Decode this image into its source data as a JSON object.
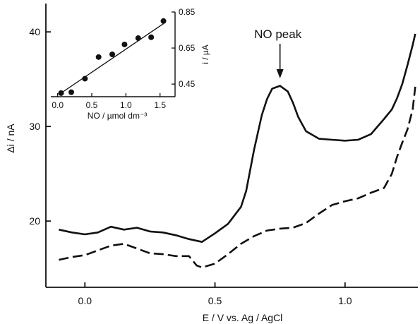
{
  "chart_data": [
    {
      "type": "line",
      "xlabel": "E / V vs. Ag / AgCl",
      "ylabel": "Δi / nA",
      "xlim": [
        -0.15,
        1.28
      ],
      "ylim": [
        13,
        43
      ],
      "x_ticks": [
        "0.0",
        "0.5",
        "1.0"
      ],
      "x_tick_values": [
        0.0,
        0.5,
        1.0
      ],
      "y_ticks": [
        "20",
        "30",
        "40"
      ],
      "y_tick_values": [
        20,
        30,
        40
      ],
      "grid": false,
      "annotation": "NO peak",
      "annotation_x": 0.75,
      "series": [
        {
          "style": "solid",
          "x": [
            -0.1,
            -0.05,
            0.0,
            0.05,
            0.1,
            0.15,
            0.2,
            0.25,
            0.3,
            0.35,
            0.4,
            0.45,
            0.5,
            0.55,
            0.6,
            0.62,
            0.65,
            0.68,
            0.7,
            0.72,
            0.75,
            0.78,
            0.8,
            0.82,
            0.85,
            0.9,
            0.95,
            1.0,
            1.05,
            1.1,
            1.15,
            1.18,
            1.2,
            1.22,
            1.24,
            1.26,
            1.27
          ],
          "y": [
            19.1,
            18.8,
            18.6,
            18.8,
            19.4,
            19.1,
            19.3,
            18.9,
            18.8,
            18.5,
            18.1,
            17.8,
            18.7,
            19.7,
            21.5,
            23.2,
            27.5,
            31.2,
            32.9,
            34.0,
            34.3,
            33.7,
            32.5,
            31.0,
            29.5,
            28.7,
            28.6,
            28.5,
            28.6,
            29.2,
            30.8,
            31.8,
            33.0,
            34.5,
            36.5,
            38.6,
            39.8
          ]
        },
        {
          "style": "dashed",
          "x": [
            -0.1,
            -0.05,
            0.0,
            0.05,
            0.1,
            0.15,
            0.2,
            0.25,
            0.3,
            0.35,
            0.4,
            0.43,
            0.45,
            0.5,
            0.55,
            0.6,
            0.65,
            0.7,
            0.75,
            0.8,
            0.85,
            0.9,
            0.95,
            1.0,
            1.05,
            1.1,
            1.15,
            1.18,
            1.2,
            1.22,
            1.24,
            1.26,
            1.27
          ],
          "y": [
            15.9,
            16.2,
            16.4,
            16.9,
            17.4,
            17.6,
            17.1,
            16.6,
            16.5,
            16.3,
            16.3,
            15.3,
            15.1,
            15.5,
            16.5,
            17.6,
            18.4,
            19.0,
            19.2,
            19.3,
            19.8,
            20.8,
            21.7,
            22.1,
            22.4,
            23.0,
            23.5,
            25.0,
            26.8,
            28.3,
            29.7,
            31.8,
            34.2
          ]
        }
      ]
    },
    {
      "type": "scatter",
      "xlabel": "NO / µmol dm⁻³",
      "ylabel": "i / µA",
      "xlim": [
        -0.1,
        1.72
      ],
      "ylim": [
        0.38,
        0.85
      ],
      "x_ticks": [
        "0.0",
        "0.5",
        "1.0",
        "1.5"
      ],
      "x_tick_values": [
        0.0,
        0.5,
        1.0,
        1.5
      ],
      "y_ticks": [
        "0.45",
        "0.65",
        "0.85"
      ],
      "y_tick_values": [
        0.45,
        0.65,
        0.85
      ],
      "y_axis_side": "right",
      "points_x": [
        0.05,
        0.2,
        0.4,
        0.6,
        0.8,
        0.98,
        1.18,
        1.37,
        1.55
      ],
      "points_y": [
        0.4,
        0.405,
        0.48,
        0.6,
        0.615,
        0.67,
        0.705,
        0.71,
        0.8
      ],
      "fit_line": {
        "x": [
          0.05,
          1.55
        ],
        "y": [
          0.4,
          0.785
        ]
      }
    }
  ]
}
